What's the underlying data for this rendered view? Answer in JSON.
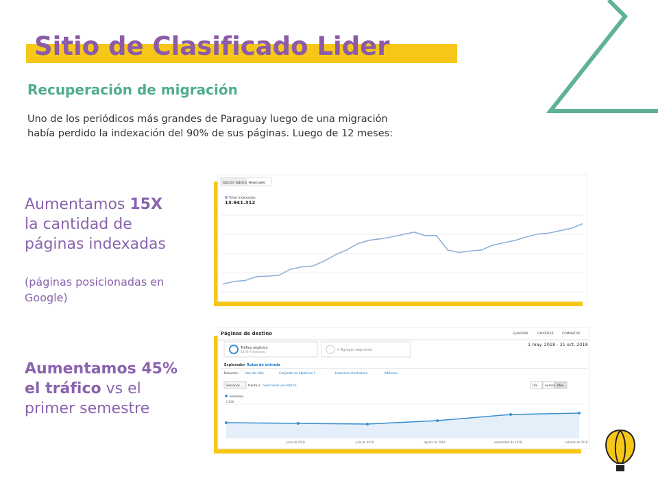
{
  "header": {
    "title": "Sitio de Clasificado Lider",
    "subtitle": "Recuperación de migración",
    "intro": [
      "Uno de los periódicos más grandes de Paraguay luego de una migración",
      "había perdido la indexación del 90% de sus páginas. Luego de 12 meses:"
    ]
  },
  "highlights": [
    {
      "lines": [
        [
          {
            "text": "Aumentamos ",
            "bold": false
          },
          {
            "text": "15X",
            "bold": true
          }
        ],
        [
          {
            "text": "la cantidad de",
            "bold": false
          }
        ],
        [
          {
            "text": "páginas indexadas",
            "bold": false
          }
        ]
      ],
      "note": [
        "(páginas posicionadas en",
        "Google)"
      ]
    },
    {
      "lines": [
        [
          {
            "text": "Aumentamos 45%",
            "bold": true
          }
        ],
        [
          {
            "text": "el tráfico",
            "bold": true
          },
          {
            "text": " vs el",
            "bold": false
          }
        ],
        [
          {
            "text": "primer semestre",
            "bold": false
          }
        ]
      ]
    }
  ],
  "screenshots": [
    {
      "tabs": [
        "Opción básica",
        "Avanzado"
      ],
      "legend": "Total indexadas",
      "total": "13.941.312",
      "chart": {
        "type": "line",
        "color": "#8fb0d6",
        "ylim": [
          0,
          16
        ],
        "values": [
          1.5,
          2,
          2.2,
          3,
          3.1,
          3.3,
          4.5,
          5,
          5.2,
          6.2,
          7.5,
          8.5,
          9.8,
          10.5,
          10.8,
          11.2,
          11.7,
          12.2,
          11.5,
          11.5,
          8.5,
          8,
          8.3,
          8.5,
          9.5,
          10,
          10.5,
          11.2,
          11.8,
          12,
          12.5,
          13,
          13.941312
        ]
      }
    },
    {
      "title": "Páginas de destino",
      "actions": [
        "GUARDAR",
        "EXPORTAR",
        "COMPARTIR"
      ],
      "segment": "Tráfico orgánico",
      "segment_sub": "64,76 % Sesiones",
      "add_segment": "+ Agregar segmento",
      "date": "1 may. 2018 - 31 oct. 2018",
      "tabs": [
        "Explorador",
        "Rutas de entrada"
      ],
      "subtabs": [
        "Resumen",
        "Uso del sitio",
        "Conjunto de objetivos 1",
        "Comercio electrónico",
        "AdSense"
      ],
      "metric": "Sesiones",
      "versus": "frente a",
      "select": "Seleccionar una métrica",
      "periods": [
        "Día",
        "Semana",
        "Mes"
      ],
      "chart": {
        "type": "line",
        "color": "#3a8fcf",
        "series_name": "Sesiones",
        "ylim": [
          0,
          2000
        ],
        "yticks": [
          {
            "value": 2000,
            "label": "2.000"
          }
        ],
        "values": [
          920,
          880,
          840,
          1040,
          1400,
          1480
        ],
        "categories": [
          null,
          "junio de 2018",
          "julio de 2018",
          "agosto de 2018",
          "septiembre de 2018",
          "octubre de 2018"
        ]
      }
    }
  ]
}
